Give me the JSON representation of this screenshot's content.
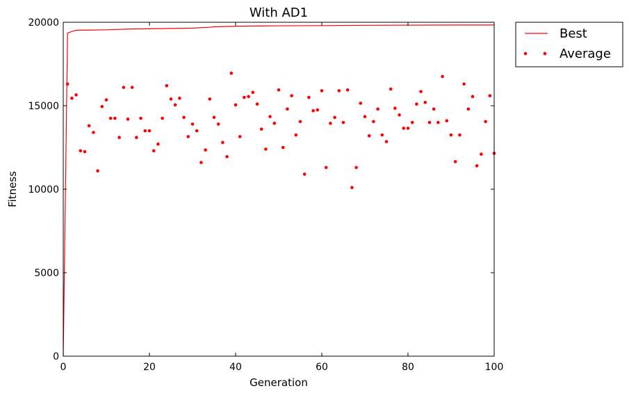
{
  "chart_data": {
    "type": "line",
    "title": "With AD1",
    "xlabel": "Generation",
    "ylabel": "Fitness",
    "xlim": [
      0,
      100
    ],
    "ylim": [
      0,
      20000
    ],
    "xticks": [
      0,
      20,
      40,
      60,
      80,
      100
    ],
    "yticks": [
      0,
      5000,
      10000,
      15000,
      20000
    ],
    "grid": false,
    "legend_position": "outside-top-right",
    "colors": {
      "series": "#ff0000",
      "axes": "#000000"
    },
    "series": [
      {
        "name": "Best",
        "style": "line",
        "x": [
          0,
          1,
          2,
          3,
          10,
          16,
          20,
          30,
          34,
          35,
          40,
          50,
          60,
          70,
          100
        ],
        "y": [
          0,
          19350,
          19450,
          19520,
          19550,
          19600,
          19610,
          19650,
          19700,
          19730,
          19760,
          19790,
          19800,
          19820,
          19840
        ]
      },
      {
        "name": "Average",
        "style": "points",
        "x": [
          1,
          2,
          3,
          4,
          5,
          6,
          7,
          8,
          9,
          10,
          11,
          12,
          13,
          14,
          15,
          16,
          17,
          18,
          19,
          20,
          21,
          22,
          23,
          24,
          25,
          26,
          27,
          28,
          29,
          30,
          31,
          32,
          33,
          34,
          35,
          36,
          37,
          38,
          39,
          40,
          41,
          42,
          43,
          44,
          45,
          46,
          47,
          48,
          49,
          50,
          51,
          52,
          53,
          54,
          55,
          56,
          57,
          58,
          59,
          60,
          61,
          62,
          63,
          64,
          65,
          66,
          67,
          68,
          69,
          70,
          71,
          72,
          73,
          74,
          75,
          76,
          77,
          78,
          79,
          80,
          81,
          82,
          83,
          84,
          85,
          86,
          87,
          88,
          89,
          90,
          91,
          92,
          93,
          94,
          95,
          96,
          97,
          98,
          99,
          100
        ],
        "y": [
          16300,
          15450,
          15650,
          12300,
          12250,
          13800,
          13400,
          11100,
          14950,
          15350,
          14250,
          14250,
          13100,
          16100,
          14200,
          16100,
          13100,
          14250,
          13500,
          13500,
          12300,
          12700,
          14250,
          16200,
          15400,
          15050,
          15450,
          14300,
          13150,
          13900,
          13500,
          11600,
          12350,
          15400,
          14300,
          13900,
          12800,
          11950,
          16950,
          15050,
          13150,
          15500,
          15550,
          15800,
          15100,
          13600,
          12400,
          14350,
          13950,
          15950,
          12500,
          14800,
          15600,
          13250,
          14050,
          10900,
          15500,
          14700,
          14750,
          15900,
          11300,
          13950,
          14300,
          15900,
          14000,
          15950,
          10100,
          11300,
          15150,
          14350,
          13200,
          14050,
          14800,
          13250,
          12850,
          16000,
          14850,
          14450,
          13650,
          13650,
          14000,
          15100,
          15850,
          15200,
          14000,
          14800,
          14000,
          16750,
          14100,
          13250,
          11650,
          13250,
          16300,
          14800,
          15550,
          11400,
          12100,
          14050,
          15600,
          12150
        ]
      }
    ]
  }
}
